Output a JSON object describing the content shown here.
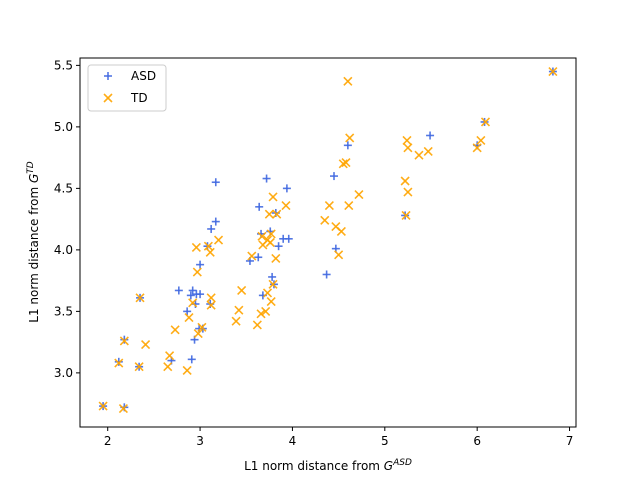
{
  "chart_data": {
    "type": "scatter",
    "title": "",
    "xlabel": "L1 norm distance from ",
    "xlabel_symbol": "G",
    "xlabel_sup": "ASD",
    "ylabel": "L1 norm distance from ",
    "ylabel_symbol": "G",
    "ylabel_sup": "TD",
    "xlim": [
      1.7,
      7.07
    ],
    "ylim": [
      2.56,
      5.56
    ],
    "xticks": [
      2,
      3,
      4,
      5,
      6,
      7
    ],
    "yticks": [
      3.0,
      3.5,
      4.0,
      4.5,
      5.0,
      5.5
    ],
    "xtick_labels": [
      "2",
      "3",
      "4",
      "5",
      "6",
      "7"
    ],
    "ytick_labels": [
      "3.0",
      "3.5",
      "4.0",
      "4.5",
      "5.0",
      "5.5"
    ],
    "grid": false,
    "legend_position": "upper-left",
    "series": [
      {
        "name": "ASD",
        "marker": "plus",
        "color": "#4169e1",
        "points": [
          [
            1.95,
            2.73
          ],
          [
            2.12,
            3.09
          ],
          [
            2.18,
            2.72
          ],
          [
            2.18,
            3.27
          ],
          [
            2.34,
            3.05
          ],
          [
            2.35,
            3.61
          ],
          [
            2.69,
            3.1
          ],
          [
            2.77,
            3.67
          ],
          [
            2.86,
            3.5
          ],
          [
            2.9,
            3.63
          ],
          [
            2.91,
            3.11
          ],
          [
            2.92,
            3.67
          ],
          [
            2.94,
            3.27
          ],
          [
            2.95,
            3.56
          ],
          [
            2.96,
            3.64
          ],
          [
            2.99,
            3.36
          ],
          [
            3.0,
            3.64
          ],
          [
            3.0,
            3.88
          ],
          [
            3.03,
            3.36
          ],
          [
            3.08,
            4.03
          ],
          [
            3.11,
            3.56
          ],
          [
            3.12,
            4.17
          ],
          [
            3.17,
            4.55
          ],
          [
            3.17,
            4.23
          ],
          [
            3.54,
            3.91
          ],
          [
            3.63,
            3.94
          ],
          [
            3.64,
            4.35
          ],
          [
            3.66,
            4.13
          ],
          [
            3.68,
            3.63
          ],
          [
            3.72,
            4.58
          ],
          [
            3.76,
            4.15
          ],
          [
            3.78,
            3.78
          ],
          [
            3.8,
            3.72
          ],
          [
            3.82,
            4.3
          ],
          [
            3.85,
            4.03
          ],
          [
            3.9,
            4.09
          ],
          [
            3.94,
            4.5
          ],
          [
            3.96,
            4.09
          ],
          [
            4.37,
            3.8
          ],
          [
            4.45,
            4.6
          ],
          [
            4.47,
            4.01
          ],
          [
            4.6,
            4.85
          ],
          [
            5.22,
            4.28
          ],
          [
            5.49,
            4.93
          ],
          [
            6.0,
            4.85
          ],
          [
            6.08,
            5.04
          ],
          [
            6.82,
            5.45
          ]
        ]
      },
      {
        "name": "TD",
        "marker": "x",
        "color": "#ffa500",
        "points": [
          [
            1.95,
            2.73
          ],
          [
            2.12,
            3.08
          ],
          [
            2.17,
            2.71
          ],
          [
            2.18,
            3.26
          ],
          [
            2.34,
            3.05
          ],
          [
            2.35,
            3.61
          ],
          [
            2.41,
            3.23
          ],
          [
            2.65,
            3.05
          ],
          [
            2.67,
            3.14
          ],
          [
            2.73,
            3.35
          ],
          [
            2.86,
            3.02
          ],
          [
            2.88,
            3.45
          ],
          [
            2.92,
            3.57
          ],
          [
            2.96,
            4.02
          ],
          [
            2.97,
            3.82
          ],
          [
            2.98,
            3.32
          ],
          [
            3.02,
            3.37
          ],
          [
            3.09,
            4.03
          ],
          [
            3.11,
            3.98
          ],
          [
            3.12,
            3.61
          ],
          [
            3.12,
            3.55
          ],
          [
            3.2,
            4.08
          ],
          [
            3.39,
            3.42
          ],
          [
            3.42,
            3.51
          ],
          [
            3.45,
            3.67
          ],
          [
            3.56,
            3.95
          ],
          [
            3.62,
            3.39
          ],
          [
            3.66,
            3.48
          ],
          [
            3.67,
            4.11
          ],
          [
            3.68,
            4.04
          ],
          [
            3.71,
            3.5
          ],
          [
            3.73,
            4.08
          ],
          [
            3.73,
            3.65
          ],
          [
            3.75,
            4.29
          ],
          [
            3.76,
            4.06
          ],
          [
            3.77,
            4.13
          ],
          [
            3.77,
            3.58
          ],
          [
            3.79,
            3.72
          ],
          [
            3.79,
            4.43
          ],
          [
            3.82,
            3.93
          ],
          [
            3.83,
            4.29
          ],
          [
            3.93,
            4.36
          ],
          [
            4.35,
            4.24
          ],
          [
            4.4,
            4.36
          ],
          [
            4.47,
            4.19
          ],
          [
            4.5,
            3.96
          ],
          [
            4.53,
            4.15
          ],
          [
            4.55,
            4.7
          ],
          [
            4.58,
            4.71
          ],
          [
            4.6,
            5.37
          ],
          [
            4.61,
            4.36
          ],
          [
            4.62,
            4.91
          ],
          [
            4.72,
            4.45
          ],
          [
            5.22,
            4.56
          ],
          [
            5.23,
            4.28
          ],
          [
            5.24,
            4.89
          ],
          [
            5.25,
            4.47
          ],
          [
            5.25,
            4.83
          ],
          [
            5.37,
            4.77
          ],
          [
            5.47,
            4.8
          ],
          [
            6.0,
            4.83
          ],
          [
            6.04,
            4.89
          ],
          [
            6.09,
            5.04
          ],
          [
            6.82,
            5.45
          ]
        ]
      }
    ]
  }
}
